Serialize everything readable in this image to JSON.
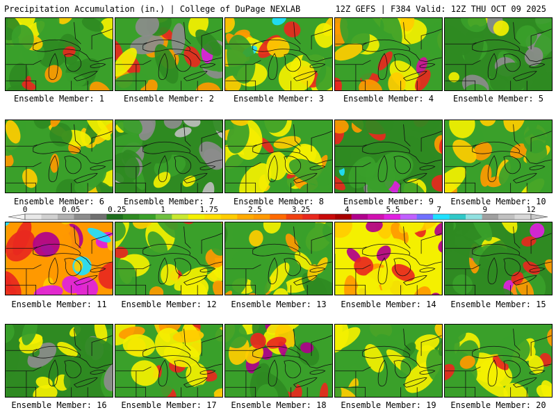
{
  "header": {
    "title_left": "Precipitation Accumulation (in.) | College of DuPage NEXLAB",
    "title_right": "12Z GEFS | F384 Valid: 12Z THU OCT 09 2025"
  },
  "panel_label_prefix": "Ensemble Member: ",
  "members": [
    {
      "label": "Ensemble Member: 1",
      "palette": [
        "#3aa02a",
        "#2f8a22",
        "#f4f000",
        "#ffcc00",
        "#ff9900",
        "#e8281e"
      ]
    },
    {
      "label": "Ensemble Member: 2",
      "palette": [
        "#3aa02a",
        "#2f8a22",
        "#8c8c8c",
        "#f4f000",
        "#ff9900",
        "#e8281e",
        "#e020e0"
      ]
    },
    {
      "label": "Ensemble Member: 3",
      "palette": [
        "#3aa02a",
        "#f4f000",
        "#ffcc00",
        "#ff9900",
        "#e8281e",
        "#b0008c",
        "#20e0ff"
      ]
    },
    {
      "label": "Ensemble Member: 4",
      "palette": [
        "#3aa02a",
        "#f4f000",
        "#ffcc00",
        "#ff9900",
        "#e8281e",
        "#d0109a"
      ]
    },
    {
      "label": "Ensemble Member: 5",
      "palette": [
        "#2f8a22",
        "#3aa02a",
        "#8c8c8c",
        "#f4f000"
      ]
    },
    {
      "label": "Ensemble Member: 6",
      "palette": [
        "#3aa02a",
        "#2f8a22",
        "#f4f000",
        "#ffcc00",
        "#ff9900"
      ]
    },
    {
      "label": "Ensemble Member: 7",
      "palette": [
        "#2f8a22",
        "#3aa02a",
        "#8c8c8c",
        "#bdbdbd",
        "#f4f000"
      ]
    },
    {
      "label": "Ensemble Member: 8",
      "palette": [
        "#3aa02a",
        "#f4f000",
        "#ffcc00",
        "#ff9900",
        "#e8281e"
      ]
    },
    {
      "label": "Ensemble Member: 9",
      "palette": [
        "#2f8a22",
        "#3aa02a",
        "#8c8c8c",
        "#f4f000",
        "#ff9900",
        "#e8281e",
        "#e020e0",
        "#20e0ff"
      ]
    },
    {
      "label": "Ensemble Member: 10",
      "palette": [
        "#3aa02a",
        "#f4f000",
        "#ffcc00",
        "#ff9900"
      ]
    },
    {
      "label": "Ensemble Member: 11",
      "palette": [
        "#ff9900",
        "#e8281e",
        "#b0008c",
        "#e020e0",
        "#20e0ff",
        "#ffcc00"
      ]
    },
    {
      "label": "Ensemble Member: 12",
      "palette": [
        "#3aa02a",
        "#f4f000",
        "#ffcc00",
        "#ff9900",
        "#e8281e"
      ]
    },
    {
      "label": "Ensemble Member: 13",
      "palette": [
        "#3aa02a",
        "#2f8a22",
        "#f4f000",
        "#ffcc00",
        "#ff9900"
      ]
    },
    {
      "label": "Ensemble Member: 14",
      "palette": [
        "#f4f000",
        "#ffcc00",
        "#ff9900",
        "#e8281e",
        "#b0008c"
      ]
    },
    {
      "label": "Ensemble Member: 15",
      "palette": [
        "#2f8a22",
        "#3aa02a",
        "#f4f000",
        "#ff9900",
        "#e8281e",
        "#e020e0"
      ]
    },
    {
      "label": "Ensemble Member: 16",
      "palette": [
        "#2f8a22",
        "#3aa02a",
        "#8c8c8c",
        "#f4f000",
        "#ffcc00"
      ]
    },
    {
      "label": "Ensemble Member: 17",
      "palette": [
        "#3aa02a",
        "#f4f000",
        "#ffcc00",
        "#ff9900",
        "#e8281e"
      ]
    },
    {
      "label": "Ensemble Member: 18",
      "palette": [
        "#3aa02a",
        "#2f8a22",
        "#f4f000",
        "#ffcc00",
        "#e8281e",
        "#b0008c"
      ]
    },
    {
      "label": "Ensemble Member: 19",
      "palette": [
        "#3aa02a",
        "#f4f000",
        "#ffcc00",
        "#2f8a22"
      ]
    },
    {
      "label": "Ensemble Member: 20",
      "palette": [
        "#3aa02a",
        "#f4f000",
        "#ffcc00",
        "#ff9900",
        "#e8281e"
      ]
    }
  ],
  "colorbar": {
    "tick_labels": [
      "0",
      "0.05",
      "0.25",
      "1",
      "1.75",
      "2.5",
      "3.25",
      "4",
      "5.5",
      "7",
      "9",
      "12"
    ],
    "colors": [
      "#e8e8e8",
      "#d0d0d0",
      "#b0b0b0",
      "#8c8c8c",
      "#707070",
      "#1e6e1e",
      "#2f8a22",
      "#3aa02a",
      "#70c040",
      "#c8e830",
      "#f4f000",
      "#ffe000",
      "#ffcc00",
      "#ffaa00",
      "#ff9900",
      "#ff6a00",
      "#f04010",
      "#e8281e",
      "#c80a0a",
      "#a80000",
      "#b0008c",
      "#d010b0",
      "#e020e0",
      "#c060ff",
      "#7070ff",
      "#20e0ff",
      "#30c8c8",
      "#90e0e0",
      "#a0a0a0",
      "#c0c0c0",
      "#d8d8d8"
    ]
  }
}
